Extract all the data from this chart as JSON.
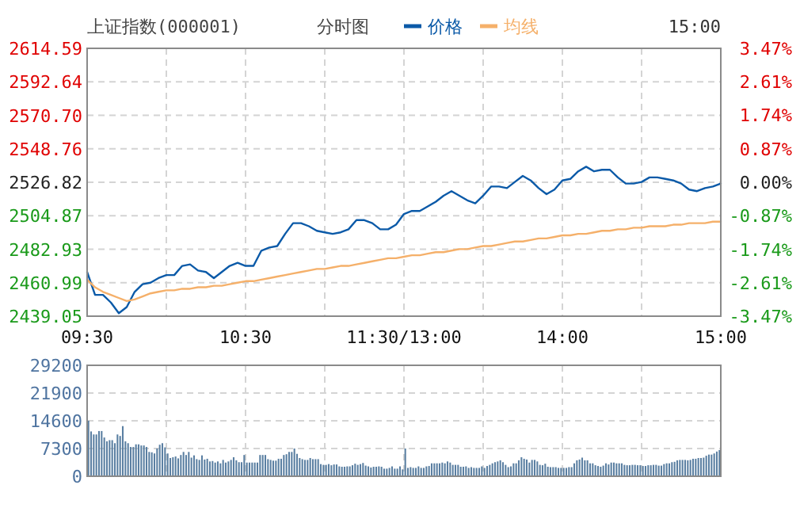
{
  "chart_data": [
    {
      "type": "line",
      "title": "上证指数(000001)",
      "subtitle": "分时图",
      "legend": "top",
      "grid": true,
      "annotations": [
        "15:00"
      ],
      "categories": [
        "09:30",
        null,
        null,
        null,
        null,
        null,
        null,
        null,
        null,
        null,
        null,
        null,
        null,
        null,
        null,
        null,
        null,
        null,
        null,
        null,
        "10:30",
        null,
        null,
        null,
        null,
        null,
        null,
        null,
        null,
        null,
        null,
        null,
        null,
        null,
        null,
        null,
        null,
        null,
        null,
        null,
        "11:30/13:00",
        null,
        null,
        null,
        null,
        null,
        null,
        null,
        null,
        null,
        null,
        null,
        null,
        null,
        null,
        null,
        null,
        null,
        null,
        null,
        "14:00",
        null,
        null,
        null,
        null,
        null,
        null,
        null,
        null,
        null,
        null,
        null,
        null,
        null,
        null,
        null,
        null,
        null,
        null,
        null,
        "15:00"
      ],
      "ylim": [
        2439.05,
        2614.59
      ],
      "yticks": [
        2439.05,
        2460.99,
        2482.93,
        2504.87,
        2526.82,
        2548.76,
        {
          "value": 2570.7,
          "label": "2570.70"
        },
        2592.64,
        2614.59
      ],
      "y2lim": [
        -3.47,
        3.47
      ],
      "y2ticks": [
        {
          "value": -3.47,
          "label": "-3.47%"
        },
        {
          "value": -2.61,
          "label": "-2.61%"
        },
        {
          "value": -1.74,
          "label": "-1.74%"
        },
        {
          "value": -0.87,
          "label": "-0.87%"
        },
        {
          "value": 0,
          "label": "0.00%"
        },
        {
          "value": 0.87,
          "label": "0.87%"
        },
        {
          "value": 1.74,
          "label": "1.74%"
        },
        {
          "value": 2.61,
          "label": "2.61%"
        },
        {
          "value": 3.47,
          "label": "3.47%"
        }
      ],
      "series": [
        {
          "name": "价格",
          "color": "#0b5aa8",
          "values": [
            2468,
            2453,
            2453,
            2448,
            2441,
            2445,
            2455,
            2460,
            2461,
            2464,
            2466,
            2466,
            2472,
            2473,
            2469,
            2468,
            2464,
            2468,
            2472,
            2474,
            2472,
            2472,
            2482,
            2484,
            2485,
            2493,
            2500,
            2500,
            2498,
            2495,
            2494,
            2493,
            2494,
            2496,
            2502,
            2502,
            2500,
            2496,
            2496,
            2499,
            2506,
            2508,
            2508,
            2511,
            2514,
            2518,
            2521,
            2518,
            2515,
            2513,
            2518,
            2524,
            2524,
            2523,
            2527,
            2531,
            2528,
            2523,
            2519,
            2522,
            2528,
            2529,
            2534,
            2537,
            2534,
            2535,
            2535,
            2530,
            2526,
            2526,
            2527,
            2530,
            2530,
            2529,
            2528,
            2526,
            2522,
            2521,
            2523,
            2524,
            2526
          ]
        },
        {
          "name": "均线",
          "color": "#f5b06a",
          "values": [
            2463,
            2458,
            2455,
            2453,
            2451,
            2449,
            2450,
            2452,
            2454,
            2455,
            2456,
            2456,
            2457,
            2457,
            2458,
            2458,
            2459,
            2459,
            2460,
            2461,
            2462,
            2462,
            2463,
            2464,
            2465,
            2466,
            2467,
            2468,
            2469,
            2470,
            2470,
            2471,
            2472,
            2472,
            2473,
            2474,
            2475,
            2476,
            2477,
            2477,
            2478,
            2479,
            2479,
            2480,
            2481,
            2481,
            2482,
            2483,
            2483,
            2484,
            2485,
            2485,
            2486,
            2487,
            2488,
            2488,
            2489,
            2490,
            2490,
            2491,
            2492,
            2492,
            2493,
            2493,
            2494,
            2495,
            2495,
            2496,
            2496,
            2497,
            2497,
            2498,
            2498,
            2498,
            2499,
            2499,
            2500,
            2500,
            2500,
            2501,
            2501
          ]
        }
      ]
    },
    {
      "type": "bar",
      "grid": true,
      "tick_labels": "y",
      "color": "#5a7fa2",
      "ylim": [
        0,
        29200
      ],
      "yticks": [
        0,
        7300,
        14600,
        21900,
        29200
      ],
      "categories": [
        null,
        null,
        null,
        null,
        null,
        null,
        null,
        null,
        null,
        null,
        null,
        null,
        null,
        null,
        null,
        null,
        null,
        null,
        null,
        null,
        null,
        null,
        null,
        null,
        null,
        null,
        null,
        null,
        null,
        null,
        null,
        null,
        null,
        null,
        null,
        null,
        null,
        null,
        null,
        null,
        null,
        null,
        null,
        null,
        null,
        null,
        null,
        null,
        null,
        null,
        null,
        null,
        null,
        null,
        null,
        null,
        null,
        null,
        null,
        null,
        null,
        null,
        null,
        null,
        null,
        null,
        null,
        null,
        null,
        null,
        null,
        null,
        null,
        null,
        null,
        null,
        null,
        null,
        null,
        null,
        null,
        null,
        null,
        null,
        null,
        null,
        null,
        null,
        null,
        null,
        null,
        null,
        null,
        null,
        null,
        null,
        null,
        null,
        null,
        null,
        null,
        null,
        null,
        null,
        null,
        null,
        null,
        null,
        null,
        null,
        null,
        null,
        null,
        null,
        null,
        null,
        null,
        null,
        null,
        null,
        null,
        null,
        null,
        null,
        null,
        null,
        null,
        null,
        null,
        null,
        null,
        null,
        null,
        null,
        null,
        null,
        null,
        null,
        null,
        null,
        null,
        null,
        null,
        null,
        null,
        null,
        null,
        null,
        null,
        null,
        null,
        null,
        null,
        null,
        null,
        null,
        null,
        null,
        null,
        null,
        null,
        null,
        null,
        null,
        null,
        null,
        null,
        null,
        null,
        null,
        null,
        null,
        null,
        null,
        null,
        null,
        null,
        null,
        null,
        null,
        null,
        null,
        null,
        null,
        null,
        null,
        null,
        null,
        null,
        null,
        null,
        null,
        null,
        null,
        null,
        null,
        null,
        null,
        null,
        null,
        null,
        null,
        null,
        null,
        null,
        null,
        null,
        null,
        null,
        null,
        null,
        null,
        null,
        null,
        null,
        null,
        null,
        null,
        null,
        null,
        null,
        null,
        null,
        null,
        null,
        null,
        null,
        null,
        null,
        null,
        null,
        null,
        null,
        null,
        null,
        null,
        null,
        null,
        null,
        null
      ],
      "values": [
        14600,
        11800,
        11000,
        11000,
        11900,
        11900,
        10200,
        9200,
        9500,
        9500,
        8700,
        11000,
        10600,
        13200,
        9200,
        8700,
        7700,
        7700,
        8400,
        8400,
        8100,
        8100,
        7700,
        6400,
        6300,
        6000,
        7300,
        8300,
        8700,
        7600,
        6000,
        4800,
        5000,
        5200,
        4700,
        5600,
        6400,
        5600,
        6400,
        4900,
        5500,
        4500,
        4300,
        5500,
        4400,
        4600,
        3900,
        4000,
        3600,
        3900,
        3400,
        4300,
        3600,
        3900,
        4300,
        5000,
        4200,
        3700,
        3700,
        5600,
        3600,
        3600,
        3600,
        3600,
        3600,
        5600,
        5600,
        5600,
        4500,
        4300,
        4100,
        4100,
        4600,
        4600,
        5600,
        5800,
        6400,
        6400,
        7300,
        5900,
        4800,
        4500,
        4300,
        4300,
        4800,
        4500,
        4500,
        4500,
        3200,
        3000,
        3000,
        3200,
        2900,
        3100,
        3100,
        2600,
        2500,
        2500,
        2600,
        2600,
        2900,
        3300,
        3000,
        3200,
        3500,
        2800,
        2600,
        2300,
        2500,
        2500,
        2600,
        2500,
        2000,
        2000,
        2200,
        2600,
        2000,
        2000,
        2600,
        1800,
        7300,
        2200,
        2400,
        2200,
        2200,
        2600,
        2200,
        2200,
        2600,
        2700,
        3400,
        3400,
        3400,
        3400,
        3600,
        3400,
        3900,
        3600,
        3000,
        3000,
        3000,
        2500,
        2500,
        2600,
        2200,
        2400,
        2200,
        2200,
        2200,
        2600,
        2200,
        2700,
        3000,
        3400,
        3700,
        3900,
        4200,
        3700,
        3000,
        2400,
        2600,
        3400,
        3400,
        4200,
        5000,
        4600,
        4400,
        3600,
        4300,
        4300,
        3900,
        3000,
        2900,
        3300,
        2500,
        2400,
        2400,
        2400,
        2200,
        2200,
        2200,
        2200,
        2400,
        2400,
        3400,
        4200,
        4400,
        4900,
        4200,
        4200,
        3400,
        3400,
        2900,
        2700,
        2500,
        2800,
        3400,
        3100,
        3600,
        3600,
        3400,
        3400,
        3400,
        3000,
        2900,
        2900,
        3000,
        3000,
        2900,
        2900,
        2700,
        2700,
        2900,
        2900,
        3000,
        3000,
        2800,
        2800,
        3200,
        3400,
        3400,
        3700,
        3800,
        4200,
        4300,
        4300,
        4300,
        4200,
        4300,
        4600,
        4600,
        4800,
        4800,
        4900,
        5400,
        5700,
        5700,
        6000,
        6500,
        6900
      ]
    }
  ]
}
